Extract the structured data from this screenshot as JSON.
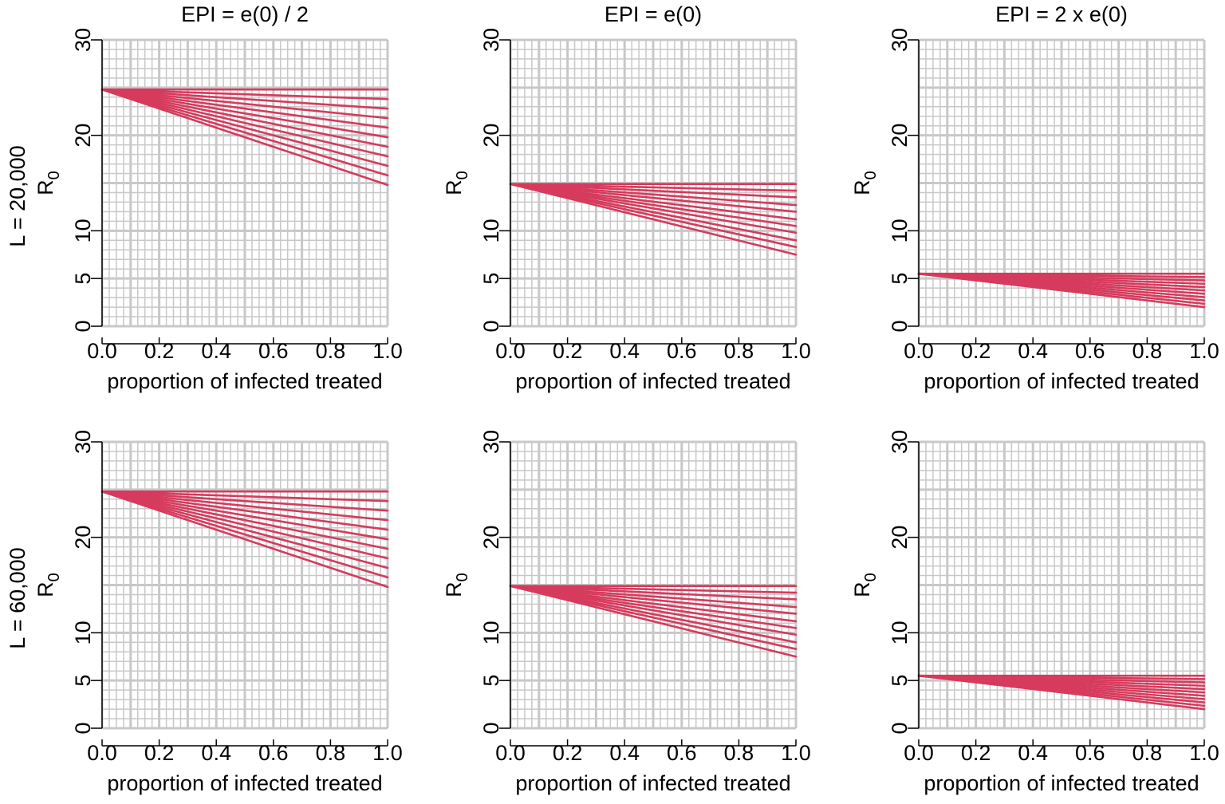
{
  "colors": {
    "series": "#d63a5c",
    "grid": "#c8c8c8",
    "axis": "#000000"
  },
  "column_titles": [
    "EPI = e(0) / 2",
    "EPI = e(0)",
    "EPI = 2 x e(0)"
  ],
  "row_labels": [
    "L = 20,000",
    "L = 60,000"
  ],
  "chart_data": [
    {
      "type": "line",
      "row": 0,
      "col": 0,
      "title": "EPI = e(0) / 2",
      "xlabel": "proportion of infected treated",
      "ylabel": "R0",
      "xlim": [
        0,
        1
      ],
      "ylim": [
        0,
        30
      ],
      "x_ticks": [
        "0.0",
        "0.2",
        "0.4",
        "0.6",
        "0.8",
        "1.0"
      ],
      "y_ticks": [
        "0",
        "5",
        "10",
        "20",
        "30"
      ],
      "grid": true,
      "series_start": 24.8,
      "series_end": [
        24.8,
        23.8,
        22.8,
        21.8,
        20.8,
        19.8,
        18.8,
        17.8,
        16.8,
        15.8,
        14.8
      ]
    },
    {
      "type": "line",
      "row": 0,
      "col": 1,
      "title": "EPI = e(0)",
      "xlabel": "proportion of infected treated",
      "ylabel": "R0",
      "xlim": [
        0,
        1
      ],
      "ylim": [
        0,
        30
      ],
      "x_ticks": [
        "0.0",
        "0.2",
        "0.4",
        "0.6",
        "0.8",
        "1.0"
      ],
      "y_ticks": [
        "0",
        "5",
        "10",
        "20",
        "30"
      ],
      "grid": true,
      "series_start": 14.9,
      "series_end": [
        14.9,
        14.2,
        13.5,
        12.7,
        12.0,
        11.2,
        10.5,
        9.8,
        9.0,
        8.3,
        7.5
      ]
    },
    {
      "type": "line",
      "row": 0,
      "col": 2,
      "title": "EPI = 2 x e(0)",
      "xlabel": "proportion of infected treated",
      "ylabel": "R0",
      "xlim": [
        0,
        1
      ],
      "ylim": [
        0,
        30
      ],
      "x_ticks": [
        "0.0",
        "0.2",
        "0.4",
        "0.6",
        "0.8",
        "1.0"
      ],
      "y_ticks": [
        "0",
        "5",
        "10",
        "20",
        "30"
      ],
      "grid": true,
      "series_start": 5.5,
      "series_end": [
        5.5,
        5.15,
        4.8,
        4.45,
        4.1,
        3.75,
        3.4,
        3.05,
        2.7,
        2.35,
        2.0
      ]
    },
    {
      "type": "line",
      "row": 1,
      "col": 0,
      "title": "",
      "xlabel": "proportion of infected treated",
      "ylabel": "R0",
      "xlim": [
        0,
        1
      ],
      "ylim": [
        0,
        30
      ],
      "x_ticks": [
        "0.0",
        "0.2",
        "0.4",
        "0.6",
        "0.8",
        "1.0"
      ],
      "y_ticks": [
        "0",
        "5",
        "10",
        "20",
        "30"
      ],
      "grid": true,
      "series_start": 24.8,
      "series_end": [
        24.8,
        23.8,
        22.8,
        21.8,
        20.8,
        19.8,
        18.8,
        17.8,
        16.8,
        15.8,
        14.8
      ]
    },
    {
      "type": "line",
      "row": 1,
      "col": 1,
      "title": "",
      "xlabel": "proportion of infected treated",
      "ylabel": "R0",
      "xlim": [
        0,
        1
      ],
      "ylim": [
        0,
        30
      ],
      "x_ticks": [
        "0.0",
        "0.2",
        "0.4",
        "0.6",
        "0.8",
        "1.0"
      ],
      "y_ticks": [
        "0",
        "5",
        "10",
        "20",
        "30"
      ],
      "grid": true,
      "series_start": 14.9,
      "series_end": [
        14.9,
        14.2,
        13.5,
        12.7,
        12.0,
        11.2,
        10.5,
        9.8,
        9.0,
        8.3,
        7.5
      ]
    },
    {
      "type": "line",
      "row": 1,
      "col": 2,
      "title": "",
      "xlabel": "proportion of infected treated",
      "ylabel": "R0",
      "xlim": [
        0,
        1
      ],
      "ylim": [
        0,
        30
      ],
      "x_ticks": [
        "0.0",
        "0.2",
        "0.4",
        "0.6",
        "0.8",
        "1.0"
      ],
      "y_ticks": [
        "0",
        "5",
        "10",
        "20",
        "30"
      ],
      "grid": true,
      "series_start": 5.5,
      "series_end": [
        5.5,
        5.15,
        4.8,
        4.45,
        4.1,
        3.75,
        3.4,
        3.05,
        2.7,
        2.35,
        2.0
      ]
    }
  ]
}
